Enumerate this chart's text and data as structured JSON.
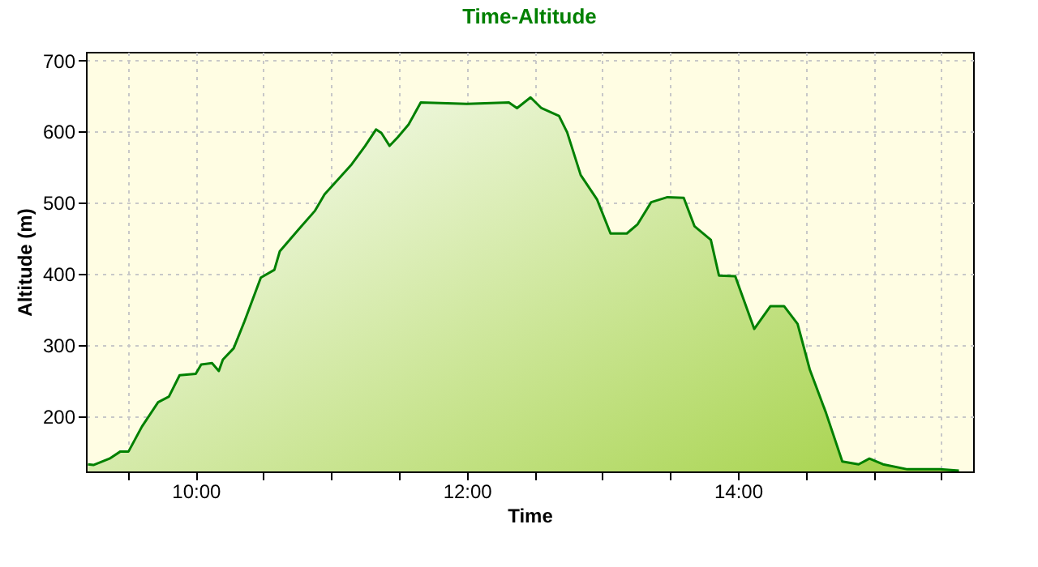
{
  "chart_data": {
    "type": "area",
    "title": "Time-Altitude",
    "xlabel": "Time",
    "ylabel": "Altitude (m)",
    "x": [
      9.205,
      9.245,
      9.364,
      9.444,
      9.504,
      9.603,
      9.722,
      9.802,
      9.881,
      10.0,
      10.04,
      10.12,
      10.17,
      10.2,
      10.28,
      10.36,
      10.48,
      10.58,
      10.62,
      10.76,
      10.88,
      10.95,
      11.15,
      11.25,
      11.33,
      11.37,
      11.43,
      11.49,
      11.57,
      11.66,
      12.0,
      12.31,
      12.37,
      12.47,
      12.55,
      12.68,
      12.74,
      12.84,
      12.96,
      13.06,
      13.18,
      13.26,
      13.36,
      13.48,
      13.6,
      13.68,
      13.8,
      13.86,
      13.98,
      14.12,
      14.24,
      14.34,
      14.44,
      14.53,
      14.65,
      14.77,
      14.89,
      14.97,
      15.07,
      15.25,
      15.49,
      15.63
    ],
    "series": [
      {
        "color": "#008000",
        "values": [
          133,
          132,
          141,
          151,
          151,
          186,
          220,
          228,
          258,
          260,
          273,
          275,
          264,
          280,
          296,
          334,
          395,
          406,
          432,
          463,
          489,
          512,
          554,
          580,
          603,
          598,
          580,
          592,
          610,
          641,
          639,
          641,
          633,
          648,
          633,
          622,
          599,
          539,
          505,
          457,
          457,
          470,
          501,
          508,
          507,
          467,
          448,
          398,
          397,
          323,
          355,
          355,
          330,
          266,
          205,
          137,
          133,
          141,
          133,
          126,
          126,
          124
        ]
      }
    ],
    "xlim": [
      9.19,
      15.735
    ],
    "xticks": [
      {
        "value": 9.5,
        "label": null
      },
      {
        "value": 10,
        "label": "10:00"
      },
      {
        "value": 10.5,
        "label": null
      },
      {
        "value": 11,
        "label": null
      },
      {
        "value": 11.5,
        "label": null
      },
      {
        "value": 12,
        "label": "12:00"
      },
      {
        "value": 12.5,
        "label": null
      },
      {
        "value": 13,
        "label": null
      },
      {
        "value": 13.5,
        "label": null
      },
      {
        "value": 14,
        "label": "14:00"
      },
      {
        "value": 14.5,
        "label": null
      },
      {
        "value": 15,
        "label": null
      },
      {
        "value": 15.5,
        "label": null
      }
    ],
    "ylim": [
      123,
      712
    ],
    "yticks": [
      200,
      300,
      400,
      500,
      600,
      700
    ],
    "grid": true
  }
}
